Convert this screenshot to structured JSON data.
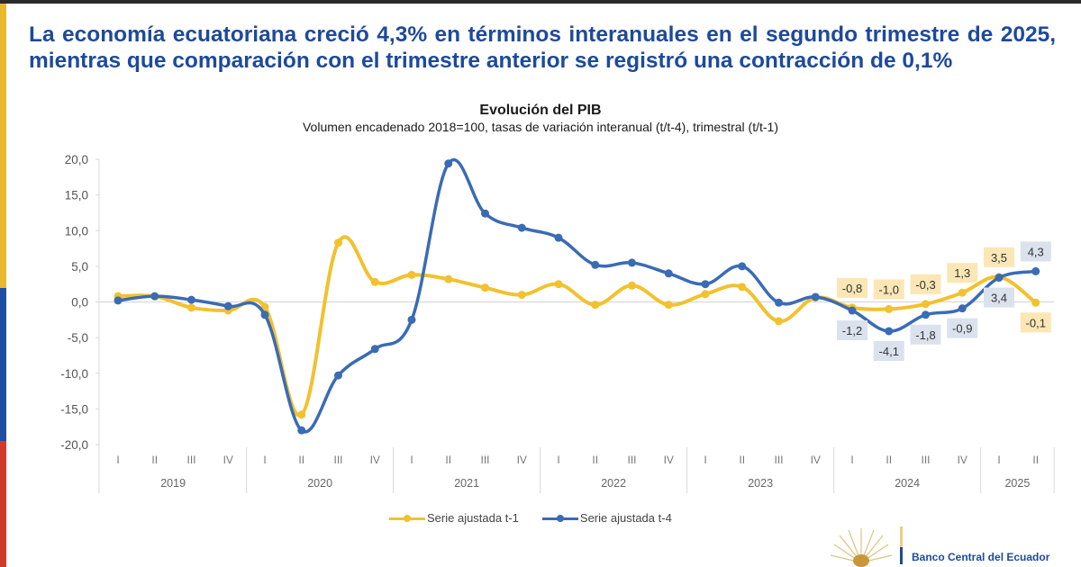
{
  "headline": "La economía ecuatoriana creció 4,3% en términos interanuales en el segundo trimestre de 2025, mientras que comparación con el trimestre anterior se registró una contracción de 0,1%",
  "footer": {
    "institution": "Banco Central del Ecuador",
    "logo_icon": "condor-emblem-icon"
  },
  "colors": {
    "headline": "#1d4a9b",
    "series_t1": "#f2c12e",
    "series_t4": "#3a6bb5",
    "label_bg_t1": "#fbe7b5",
    "label_bg_t4": "#dbe2ee",
    "flag_yellow": "#e8b92e",
    "flag_blue": "#1f4fa3",
    "flag_red": "#cf3a2c"
  },
  "chart_data": {
    "type": "line",
    "title": "Evolución del PIB",
    "subtitle": "Volumen encadenado 2018=100, tasas de variación interanual (t/t-4), trimestral (t/t-1)",
    "xlabel": "",
    "ylabel": "",
    "ylim": [
      -20,
      20
    ],
    "yticks": [
      20,
      15,
      10,
      5,
      0,
      -5,
      -10,
      -15,
      -20
    ],
    "ytick_labels": [
      "20,0",
      "15,0",
      "10,0",
      "5,0",
      "0,0",
      "-5,0",
      "-10,0",
      "-15,0",
      "-20,0"
    ],
    "grid": "zero-line only",
    "legend_position": "bottom",
    "years": [
      {
        "label": "2019",
        "quarters": [
          "I",
          "II",
          "III",
          "IV"
        ]
      },
      {
        "label": "2020",
        "quarters": [
          "I",
          "II",
          "III",
          "IV"
        ]
      },
      {
        "label": "2021",
        "quarters": [
          "I",
          "II",
          "III",
          "IV"
        ]
      },
      {
        "label": "2022",
        "quarters": [
          "I",
          "II",
          "III",
          "IV"
        ]
      },
      {
        "label": "2023",
        "quarters": [
          "I",
          "II",
          "III",
          "IV"
        ]
      },
      {
        "label": "2024",
        "quarters": [
          "I",
          "II",
          "III",
          "IV"
        ]
      },
      {
        "label": "2025",
        "quarters": [
          "I",
          "II"
        ]
      }
    ],
    "series": [
      {
        "name": "Serie ajustada t-1",
        "color": "#f2c12e",
        "values": [
          0.8,
          0.8,
          -0.8,
          -1.2,
          -0.7,
          -15.8,
          8.3,
          2.8,
          3.8,
          3.2,
          2.0,
          1.0,
          2.5,
          -0.4,
          2.3,
          -0.4,
          1.1,
          2.1,
          -2.7,
          0.6,
          -0.8,
          -1.0,
          -0.3,
          1.3,
          3.5,
          -0.1
        ],
        "data_labels": [
          {
            "index": 20,
            "text": "-0,8",
            "position": "above"
          },
          {
            "index": 21,
            "text": "-1,0",
            "position": "above"
          },
          {
            "index": 22,
            "text": "-0,3",
            "position": "above"
          },
          {
            "index": 23,
            "text": "1,3",
            "position": "above"
          },
          {
            "index": 24,
            "text": "3,5",
            "position": "above"
          },
          {
            "index": 25,
            "text": "-0,1",
            "position": "below"
          }
        ]
      },
      {
        "name": "Serie ajustada t-4",
        "color": "#3a6bb5",
        "values": [
          0.2,
          0.8,
          0.3,
          -0.6,
          -1.8,
          -18.0,
          -10.3,
          -6.6,
          -2.5,
          19.4,
          12.4,
          10.4,
          9.0,
          5.2,
          5.5,
          4.0,
          2.5,
          5.0,
          -0.1,
          0.7,
          -1.2,
          -4.1,
          -1.8,
          -0.9,
          3.4,
          4.3
        ],
        "data_labels": [
          {
            "index": 20,
            "text": "-1,2",
            "position": "below"
          },
          {
            "index": 21,
            "text": "-4,1",
            "position": "below"
          },
          {
            "index": 22,
            "text": "-1,8",
            "position": "below"
          },
          {
            "index": 23,
            "text": "-0,9",
            "position": "below"
          },
          {
            "index": 24,
            "text": "3,4",
            "position": "below"
          },
          {
            "index": 25,
            "text": "4,3",
            "position": "above"
          }
        ]
      }
    ]
  }
}
